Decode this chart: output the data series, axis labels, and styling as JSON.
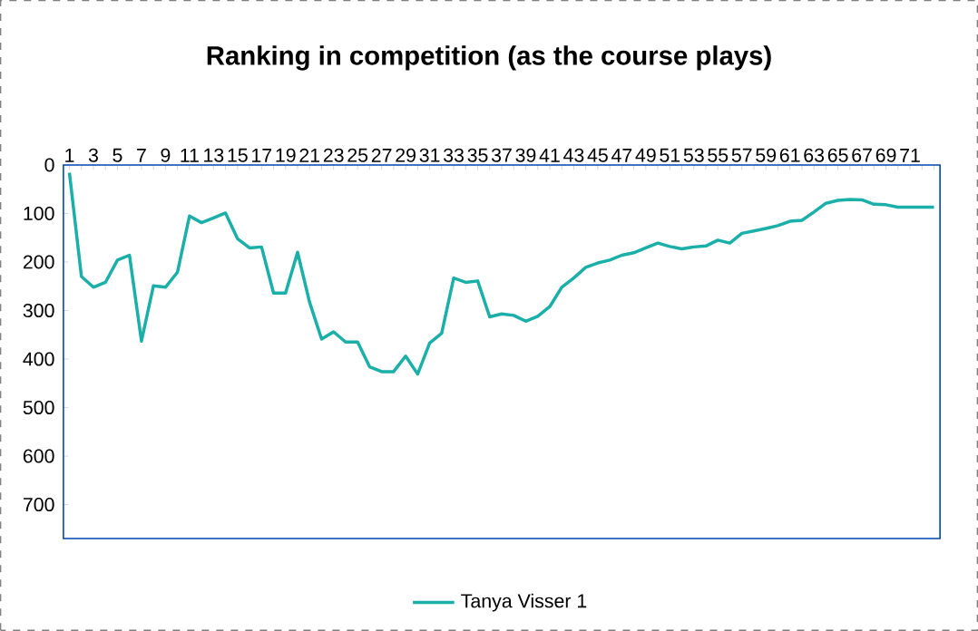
{
  "chart_data": {
    "type": "line",
    "title": "Ranking in competition (as the course plays)",
    "categories": [
      "1",
      null,
      "3",
      null,
      "5",
      null,
      "7",
      null,
      "9",
      null,
      "11",
      null,
      "13",
      null,
      "15",
      null,
      "17",
      null,
      "19",
      null,
      "21",
      null,
      "23",
      null,
      "25",
      null,
      "27",
      null,
      "29",
      null,
      "31",
      null,
      "33",
      null,
      "35",
      null,
      "37",
      null,
      "39",
      null,
      "41",
      null,
      "43",
      null,
      "45",
      null,
      "47",
      null,
      "49",
      null,
      "51",
      null,
      "53",
      null,
      "55",
      null,
      "57",
      null,
      "59",
      null,
      "61",
      null,
      "63",
      null,
      "65",
      null,
      "67",
      null,
      "69",
      null,
      "71",
      null,
      null
    ],
    "series": [
      {
        "name": "Tanya Visser 1",
        "color": "#1aafa8",
        "values": [
          16,
          230,
          252,
          242,
          196,
          186,
          363,
          249,
          252,
          221,
          105,
          119,
          109,
          99,
          152,
          171,
          169,
          264,
          264,
          180,
          283,
          359,
          344,
          365,
          365,
          416,
          426,
          426,
          394,
          431,
          367,
          347,
          233,
          242,
          239,
          313,
          307,
          310,
          322,
          312,
          292,
          252,
          233,
          211,
          202,
          196,
          186,
          181,
          171,
          161,
          168,
          173,
          169,
          167,
          155,
          161,
          141,
          136,
          131,
          125,
          116,
          114,
          97,
          79,
          73,
          71,
          72,
          81,
          82,
          87,
          87,
          87,
          87
        ]
      }
    ],
    "ylim": [
      770,
      0
    ],
    "yticks": [
      0,
      100,
      200,
      300,
      400,
      500,
      600,
      700
    ],
    "grid": false,
    "legend": "bottom",
    "marker": "none",
    "line_style": "solid"
  }
}
